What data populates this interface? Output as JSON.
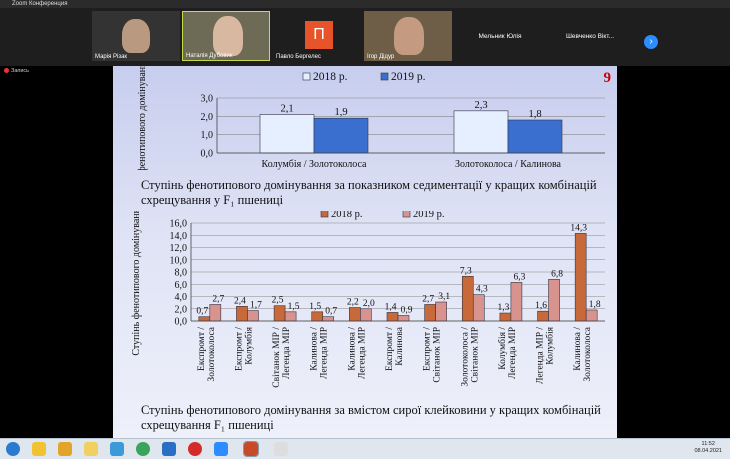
{
  "window": {
    "title": "Zoom Конференция"
  },
  "participants": [
    {
      "name": "Марія Різак",
      "color": "#8a8070"
    },
    {
      "name": "Наталія Дубовик",
      "color": "#6d6b56"
    },
    {
      "name": "Павло Бергелес",
      "initial": "П",
      "color": "#e8542a"
    },
    {
      "name": "Ігор Дідур",
      "color": "#7a6a55"
    },
    {
      "name": "Мельник Юлія"
    },
    {
      "name": "Шевченко Вікт..."
    }
  ],
  "recording": {
    "label": "Запись"
  },
  "slide": {
    "page_number": "9",
    "caption1": "Ступінь фенотипового домінування за показником седиментації у кращих комбінацій схрещування у F₁ пшениці",
    "caption2": "Ступінь фенотипового домінування за вмістом сирої клейковини у кращих комбінацій схрещування F₁ пшениці"
  },
  "chart_data": [
    {
      "type": "bar",
      "ylabel": "Ступінь фенотипового домінування, hp",
      "ylim": [
        0,
        3
      ],
      "yticks": [
        "0,0",
        "1,0",
        "2,0",
        "3,0"
      ],
      "categories": [
        "Колумбія / Золотоколоса",
        "Золотоколоса / Калинова"
      ],
      "series": [
        {
          "name": "2018 р.",
          "values": [
            2.1,
            2.3
          ],
          "labels": [
            "2,1",
            "2,3"
          ],
          "color": "#e6efff"
        },
        {
          "name": "2019 р.",
          "values": [
            1.9,
            1.8
          ],
          "labels": [
            "1,9",
            "1,8"
          ],
          "color": "#3a6fd0"
        }
      ],
      "legend": "top"
    },
    {
      "type": "bar",
      "ylabel": "Ступінь фенотипового домінування, hp",
      "ylim": [
        0,
        16
      ],
      "yticks": [
        "0,0",
        "2,0",
        "4,0",
        "6,0",
        "8,0",
        "10,0",
        "12,0",
        "14,0",
        "16,0"
      ],
      "categories": [
        "Експромт / Золотоколоса",
        "Експромт / Колумбія",
        "Світанок МІР / Легенда МІР",
        "Калинова / Легенда МІР",
        "Калинова / Легенда МІР",
        "Експромт / Калинова",
        "Експромт / Світанок МІР",
        "Золотоколоса / Світанок МІР",
        "Колумбія / Легенда МІР",
        "Легенда МІР / Колумбія",
        "Калинова / Золотоколоса"
      ],
      "series": [
        {
          "name": "2018 р.",
          "values": [
            0.7,
            2.4,
            2.5,
            1.5,
            2.2,
            1.4,
            2.7,
            7.3,
            1.3,
            1.6,
            14.3
          ],
          "labels": [
            "0,7",
            "2,4",
            "2,5",
            "1,5",
            "2,2",
            "1,4",
            "2,7",
            "7,3",
            "1,3",
            "1,6",
            "14,3"
          ],
          "color": "#c8693a"
        },
        {
          "name": "2019 р.",
          "values": [
            2.7,
            1.7,
            1.5,
            0.7,
            2.0,
            0.9,
            3.1,
            4.3,
            6.3,
            6.8,
            1.8
          ],
          "labels": [
            "2,7",
            "1,7",
            "1,5",
            "0,7",
            "2,0",
            "0,9",
            "3,1",
            "4,3",
            "6,3",
            "6,8",
            "1,8"
          ],
          "color": "#d9938f"
        }
      ],
      "legend": "top"
    }
  ],
  "taskbar": {
    "time": "11:52",
    "date": "08.04.2021"
  }
}
